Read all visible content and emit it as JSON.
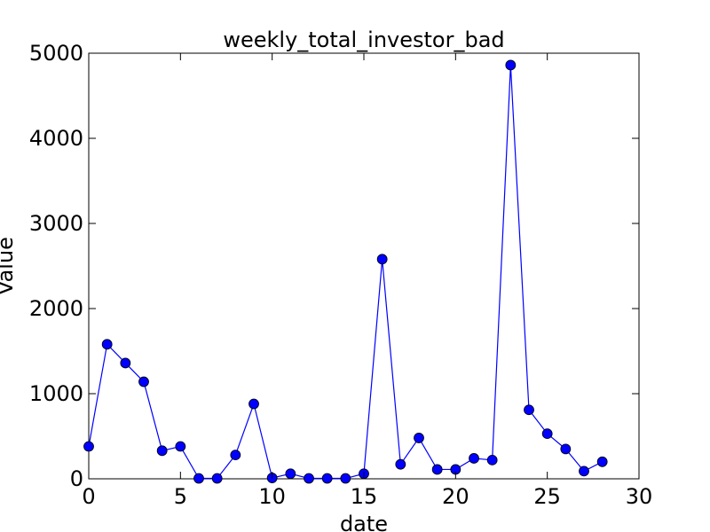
{
  "chart_data": {
    "type": "line",
    "title": "weekly_total_investor_bad",
    "xlabel": "date",
    "ylabel": "Value",
    "xlim": [
      0,
      30
    ],
    "ylim": [
      0,
      5000
    ],
    "xticks": [
      0,
      5,
      10,
      15,
      20,
      25,
      30
    ],
    "yticks": [
      0,
      1000,
      2000,
      3000,
      4000,
      5000
    ],
    "xtick_labels": [
      "0",
      "5",
      "10",
      "15",
      "20",
      "25",
      "30"
    ],
    "ytick_labels": [
      "0",
      "1000",
      "2000",
      "3000",
      "4000",
      "5000"
    ],
    "grid": false,
    "series": [
      {
        "color": "#0000ff",
        "x": [
          0,
          1,
          2,
          3,
          4,
          5,
          6,
          7,
          8,
          9,
          10,
          11,
          12,
          13,
          14,
          15,
          16,
          17,
          18,
          19,
          20,
          21,
          22,
          23,
          24,
          25,
          26,
          27,
          28
        ],
        "values": [
          380,
          1580,
          1360,
          1140,
          330,
          380,
          5,
          5,
          280,
          880,
          10,
          60,
          5,
          5,
          5,
          60,
          2580,
          170,
          480,
          110,
          110,
          240,
          220,
          4860,
          810,
          530,
          350,
          90,
          200
        ]
      }
    ]
  }
}
